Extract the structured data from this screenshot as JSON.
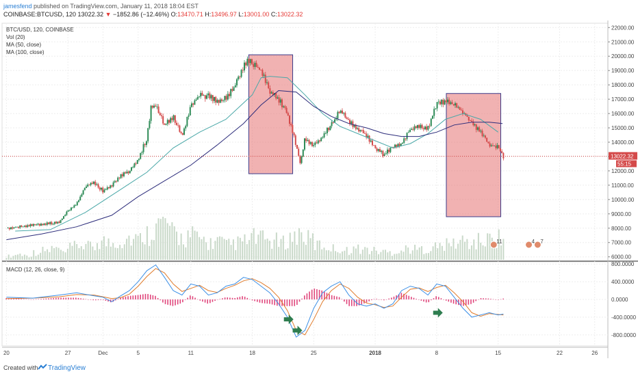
{
  "header": {
    "user": "jamesfend",
    "published_text": " published on TradingView.com, January 11, 2018 18:04 EST",
    "symbol": "COINBASE:BTCUSD, 120",
    "last": "13022.32",
    "change_arrow": "▼",
    "change": "−1852.86 (−12.46%)",
    "o_label": "O:",
    "o_value": "13470.71",
    "h_label": "H:",
    "h_value": "13496.97",
    "l_label": "L:",
    "l_value": "13001.00",
    "c_label": "C:",
    "c_value": "13022.32"
  },
  "chart_data": [
    {
      "type": "candlestick",
      "legend": [
        "BTC/USD, 120, COINBASE",
        "Vol (20)",
        "MA (50, close)",
        "MA (100, close)"
      ],
      "x_ticks": [
        {
          "label": "20",
          "day": 0
        },
        {
          "label": "27",
          "day": 7
        },
        {
          "label": "Dec",
          "day": 11
        },
        {
          "label": "5",
          "day": 15
        },
        {
          "label": "11",
          "day": 21
        },
        {
          "label": "18",
          "day": 28
        },
        {
          "label": "25",
          "day": 35
        },
        {
          "label": "2018",
          "day": 42
        },
        {
          "label": "8",
          "day": 49
        },
        {
          "label": "15",
          "day": 56
        },
        {
          "label": "22",
          "day": 63
        },
        {
          "label": "26",
          "day": 67
        }
      ],
      "x_range_days": [
        -0.5,
        68.5
      ],
      "y_ticks": [
        6000,
        7000,
        8000,
        9000,
        10000,
        11000,
        12000,
        13000,
        14000,
        15000,
        16000,
        17000,
        18000,
        19000,
        20000,
        21000,
        22000
      ],
      "y_tick_labels": [
        "6000.00",
        "7000.00",
        "8000.00",
        "9000.00",
        "10000.00",
        "11000.00",
        "12000.00",
        "13000.00",
        "14000.00",
        "15000.00",
        "16000.00",
        "17000.00",
        "18000.00",
        "19000.00",
        "20000.00",
        "21000.00",
        "22000.00"
      ],
      "ylim": [
        5700,
        22300
      ],
      "last_price_label": "13022.32",
      "countdown_label": "55:15",
      "price_path": [
        [
          0,
          8000
        ],
        [
          3,
          8200
        ],
        [
          6,
          8400
        ],
        [
          7,
          9200
        ],
        [
          8,
          9700
        ],
        [
          9,
          10900
        ],
        [
          10,
          11200
        ],
        [
          11,
          10600
        ],
        [
          12,
          11000
        ],
        [
          13,
          11700
        ],
        [
          14,
          12000
        ],
        [
          15,
          12800
        ],
        [
          16,
          14300
        ],
        [
          16.5,
          16500
        ],
        [
          17,
          16500
        ],
        [
          18,
          15200
        ],
        [
          19,
          15800
        ],
        [
          20,
          14400
        ],
        [
          21,
          16600
        ],
        [
          22,
          17300
        ],
        [
          23,
          17200
        ],
        [
          24,
          16900
        ],
        [
          25,
          17100
        ],
        [
          26,
          17900
        ],
        [
          27,
          19300
        ],
        [
          27.5,
          19800
        ],
        [
          28,
          19500
        ],
        [
          29,
          19000
        ],
        [
          30,
          17600
        ],
        [
          31,
          17000
        ],
        [
          31.5,
          16500
        ],
        [
          32,
          16000
        ],
        [
          33,
          13800
        ],
        [
          33.5,
          12500
        ],
        [
          34,
          14300
        ],
        [
          35,
          13700
        ],
        [
          36,
          14400
        ],
        [
          37,
          15200
        ],
        [
          38,
          16200
        ],
        [
          39,
          15500
        ],
        [
          40,
          14900
        ],
        [
          41,
          14500
        ],
        [
          42,
          13600
        ],
        [
          43,
          13100
        ],
        [
          44,
          13700
        ],
        [
          45,
          13900
        ],
        [
          46,
          14900
        ],
        [
          47,
          15100
        ],
        [
          48,
          15000
        ],
        [
          49,
          16600
        ],
        [
          50,
          16900
        ],
        [
          51,
          16600
        ],
        [
          52,
          16100
        ],
        [
          53,
          15400
        ],
        [
          54,
          14700
        ],
        [
          55,
          13800
        ],
        [
          56,
          13700
        ],
        [
          56.6,
          13022
        ]
      ],
      "ma50_path": [
        [
          1,
          7800
        ],
        [
          5,
          7900
        ],
        [
          9,
          9100
        ],
        [
          13,
          10700
        ],
        [
          16,
          11900
        ],
        [
          19,
          13600
        ],
        [
          22,
          14700
        ],
        [
          25,
          15600
        ],
        [
          28,
          17300
        ],
        [
          29,
          18500
        ],
        [
          30,
          18600
        ],
        [
          32,
          18500
        ],
        [
          34,
          17300
        ],
        [
          36,
          16000
        ],
        [
          38,
          15100
        ],
        [
          40,
          14600
        ],
        [
          42,
          14100
        ],
        [
          44,
          13600
        ],
        [
          46,
          13900
        ],
        [
          48,
          14600
        ],
        [
          50,
          15600
        ],
        [
          52,
          16000
        ],
        [
          54,
          15600
        ],
        [
          56,
          14700
        ]
      ],
      "ma100_path": [
        [
          0,
          7200
        ],
        [
          4,
          7600
        ],
        [
          8,
          8100
        ],
        [
          12,
          8900
        ],
        [
          15,
          10200
        ],
        [
          18,
          11300
        ],
        [
          21,
          12400
        ],
        [
          24,
          13800
        ],
        [
          27,
          15300
        ],
        [
          29,
          16600
        ],
        [
          31,
          17600
        ],
        [
          33,
          17500
        ],
        [
          35,
          16500
        ],
        [
          37,
          15800
        ],
        [
          39,
          15300
        ],
        [
          41,
          15000
        ],
        [
          43,
          14600
        ],
        [
          45,
          14400
        ],
        [
          47,
          14400
        ],
        [
          49,
          14700
        ],
        [
          51,
          15200
        ],
        [
          53,
          15400
        ],
        [
          55,
          15400
        ],
        [
          56.5,
          15300
        ]
      ],
      "highlight_boxes": [
        {
          "x0": 27.6,
          "x1": 32.6,
          "y0": 11800,
          "y1": 20100
        },
        {
          "x0": 50.1,
          "x1": 56.3,
          "y0": 8800,
          "y1": 17400
        }
      ],
      "volume_relative": [
        0.1,
        0.15,
        0.12,
        0.2,
        0.25,
        0.3,
        0.2,
        0.35,
        0.4,
        0.35,
        0.5,
        0.45,
        0.5,
        0.6,
        0.55,
        0.7,
        0.9,
        1.0,
        0.7,
        0.6,
        0.65,
        0.55,
        0.45,
        0.5,
        0.4,
        0.45,
        0.5,
        0.6,
        0.55,
        0.5,
        0.45,
        0.6,
        0.7,
        0.55,
        0.4,
        0.35,
        0.3,
        0.25,
        0.3,
        0.28,
        0.25,
        0.22,
        0.2,
        0.25,
        0.3,
        0.28,
        0.3,
        0.35,
        0.4,
        0.45,
        0.5,
        0.45,
        0.5,
        0.55,
        0.6,
        0.5
      ],
      "event_badges": [
        {
          "day": 55.5,
          "label": "11"
        },
        {
          "day": 59.5,
          "label": "4"
        },
        {
          "day": 60.5,
          "label": "7"
        }
      ]
    },
    {
      "type": "line",
      "title": "MACD (12, 26, close, 9)",
      "y_ticks": [
        800,
        400,
        0,
        -400,
        -800
      ],
      "y_tick_labels": [
        "800.0000",
        "400.0000",
        "0.0000",
        "-400.0000",
        "-800.0000"
      ],
      "ylim": [
        -1050,
        850
      ],
      "macd_path": [
        [
          0,
          50
        ],
        [
          3,
          30
        ],
        [
          6,
          100
        ],
        [
          8,
          150
        ],
        [
          10,
          80
        ],
        [
          11,
          50
        ],
        [
          12,
          -50
        ],
        [
          13,
          80
        ],
        [
          14,
          200
        ],
        [
          15,
          400
        ],
        [
          16,
          650
        ],
        [
          17,
          780
        ],
        [
          18,
          500
        ],
        [
          19,
          200
        ],
        [
          20,
          100
        ],
        [
          21,
          350
        ],
        [
          22,
          300
        ],
        [
          23,
          100
        ],
        [
          24,
          150
        ],
        [
          25,
          300
        ],
        [
          26,
          350
        ],
        [
          27,
          500
        ],
        [
          28,
          450
        ],
        [
          29,
          300
        ],
        [
          30,
          150
        ],
        [
          31,
          -100
        ],
        [
          32,
          -400
        ],
        [
          33,
          -850
        ],
        [
          34,
          -700
        ],
        [
          35,
          -200
        ],
        [
          36,
          150
        ],
        [
          37,
          300
        ],
        [
          38,
          400
        ],
        [
          39,
          100
        ],
        [
          40,
          -100
        ],
        [
          41,
          -150
        ],
        [
          42,
          -100
        ],
        [
          43,
          -200
        ],
        [
          44,
          -100
        ],
        [
          45,
          200
        ],
        [
          46,
          300
        ],
        [
          47,
          250
        ],
        [
          48,
          100
        ],
        [
          49,
          350
        ],
        [
          50,
          300
        ],
        [
          51,
          50
        ],
        [
          52,
          -200
        ],
        [
          53,
          -400
        ],
        [
          54,
          -350
        ],
        [
          55,
          -300
        ],
        [
          56,
          -350
        ],
        [
          56.6,
          -330
        ]
      ],
      "signal_path": [
        [
          0,
          20
        ],
        [
          3,
          30
        ],
        [
          6,
          60
        ],
        [
          8,
          110
        ],
        [
          10,
          100
        ],
        [
          11,
          60
        ],
        [
          12,
          20
        ],
        [
          13,
          40
        ],
        [
          14,
          120
        ],
        [
          15,
          300
        ],
        [
          16,
          520
        ],
        [
          17,
          700
        ],
        [
          18,
          600
        ],
        [
          19,
          350
        ],
        [
          20,
          180
        ],
        [
          21,
          250
        ],
        [
          22,
          320
        ],
        [
          23,
          200
        ],
        [
          24,
          160
        ],
        [
          25,
          250
        ],
        [
          26,
          320
        ],
        [
          27,
          420
        ],
        [
          28,
          470
        ],
        [
          29,
          380
        ],
        [
          30,
          250
        ],
        [
          31,
          50
        ],
        [
          32,
          -250
        ],
        [
          33,
          -700
        ],
        [
          34,
          -800
        ],
        [
          35,
          -450
        ],
        [
          36,
          -50
        ],
        [
          37,
          200
        ],
        [
          38,
          350
        ],
        [
          39,
          250
        ],
        [
          40,
          50
        ],
        [
          41,
          -80
        ],
        [
          42,
          -120
        ],
        [
          43,
          -180
        ],
        [
          44,
          -150
        ],
        [
          45,
          50
        ],
        [
          46,
          230
        ],
        [
          47,
          260
        ],
        [
          48,
          180
        ],
        [
          49,
          270
        ],
        [
          50,
          320
        ],
        [
          51,
          150
        ],
        [
          52,
          -50
        ],
        [
          53,
          -300
        ],
        [
          54,
          -380
        ],
        [
          55,
          -320
        ],
        [
          56,
          -340
        ],
        [
          56.6,
          -350
        ]
      ],
      "arrows": [
        {
          "day": 31.6,
          "value": -450
        },
        {
          "day": 32.6,
          "value": -700
        },
        {
          "day": 48.6,
          "value": -300
        }
      ]
    }
  ],
  "footer": {
    "created_with": "Created with",
    "brand": "TradingView"
  }
}
